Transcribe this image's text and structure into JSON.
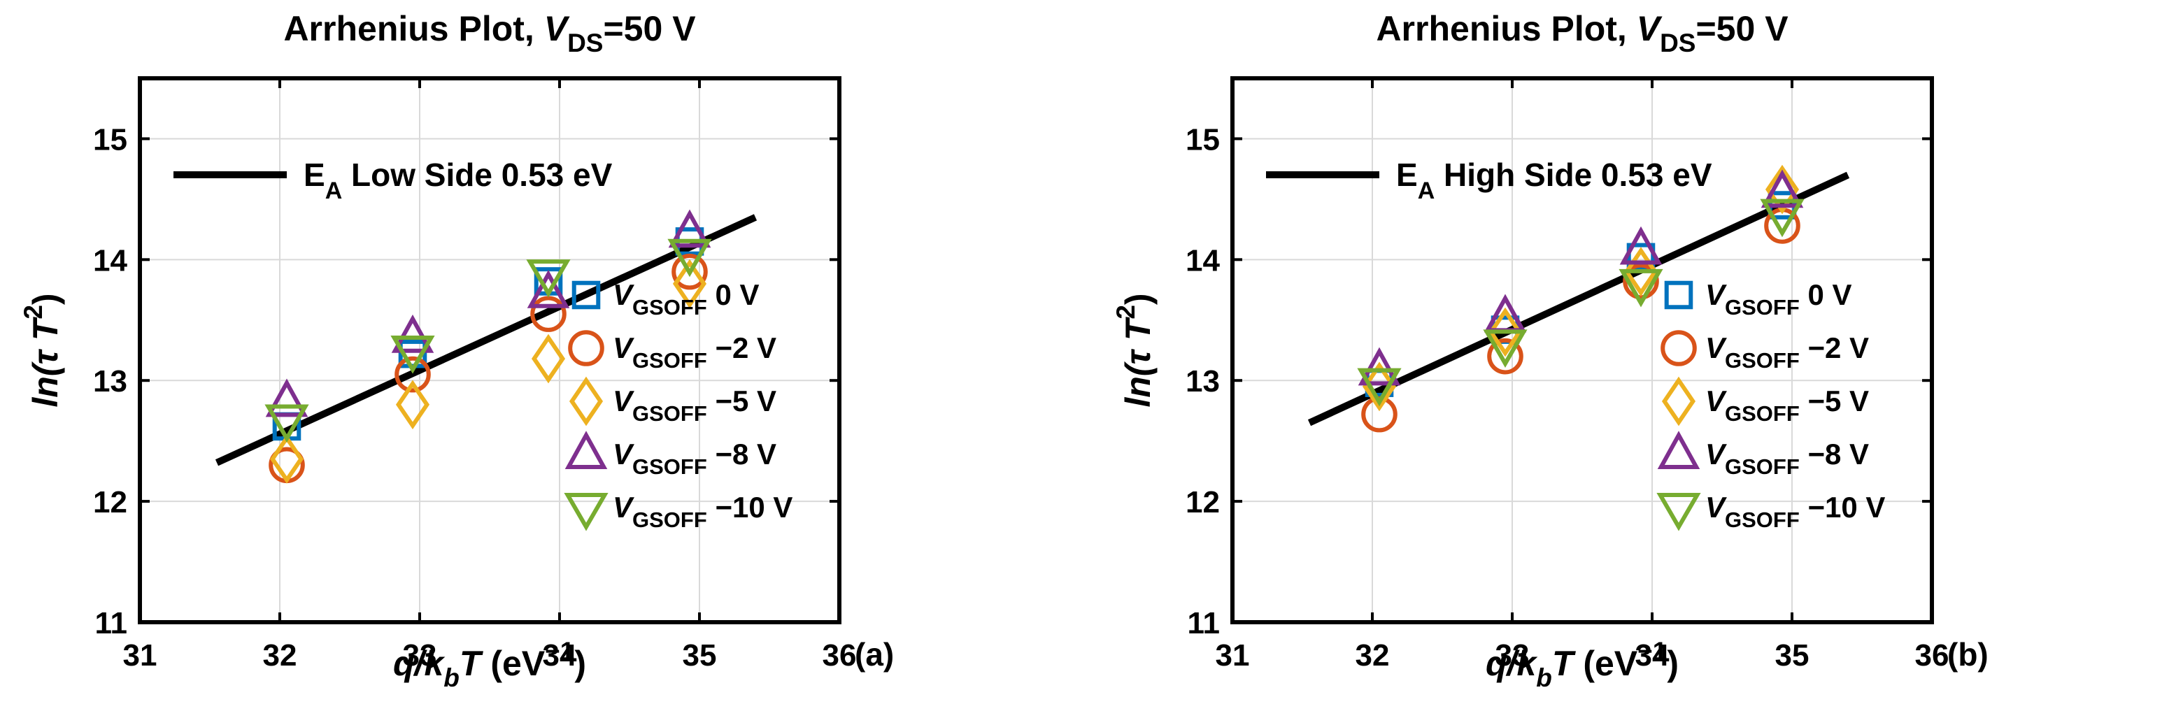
{
  "chart_data": [
    {
      "type": "scatter",
      "panel_label": "(a)",
      "title": {
        "prefix": "Arrhenius Plot, ",
        "var": "V",
        "sub": "DS",
        "suffix": "=50 V"
      },
      "xlabel": {
        "q": "q/k",
        "sub": "b",
        "T": "T",
        "unit": " (eV",
        "sup": "−1",
        "close": ")"
      },
      "ylabel": {
        "ln": "ln(",
        "tau": "τ",
        "T": " T",
        "sup": "2",
        "close": ")"
      },
      "xlim": [
        31,
        36
      ],
      "ylim": [
        11,
        15.5
      ],
      "xticks": [
        31,
        32,
        33,
        34,
        35,
        36
      ],
      "yticks": [
        11,
        12,
        13,
        14,
        15
      ],
      "grid": true,
      "fit": {
        "label_main": "E",
        "label_sub": "A",
        "label_rest": " Low Side 0.53 eV",
        "x": [
          31.55,
          35.4
        ],
        "y": [
          12.32,
          14.35
        ]
      },
      "series": [
        {
          "name": "0 V",
          "marker": "square",
          "color": "#0072BD",
          "x": [
            32.05,
            32.95,
            33.92,
            34.93
          ],
          "y": [
            12.62,
            13.22,
            13.82,
            14.15
          ]
        },
        {
          "name": "−2 V",
          "marker": "circle",
          "color": "#D95319",
          "x": [
            32.05,
            32.95,
            33.92,
            34.93
          ],
          "y": [
            12.3,
            13.05,
            13.55,
            13.9
          ]
        },
        {
          "name": "−5 V",
          "marker": "diamond",
          "color": "#EDB120",
          "x": [
            32.05,
            32.95,
            33.92,
            34.93
          ],
          "y": [
            12.35,
            12.8,
            13.18,
            13.8
          ]
        },
        {
          "name": "−8 V",
          "marker": "triangle-up",
          "color": "#7E2F8E",
          "x": [
            32.05,
            32.95,
            33.92,
            34.93
          ],
          "y": [
            12.82,
            13.35,
            13.72,
            14.22
          ]
        },
        {
          "name": "−10 V",
          "marker": "triangle-down",
          "color": "#77AC30",
          "x": [
            32.05,
            32.95,
            33.92,
            34.93
          ],
          "y": [
            12.68,
            13.25,
            13.88,
            14.05
          ]
        }
      ],
      "legend": {
        "var": "V",
        "sub": "GSOFF",
        "placement": "right"
      }
    },
    {
      "type": "scatter",
      "panel_label": "(b)",
      "title": {
        "prefix": "Arrhenius Plot, ",
        "var": "V",
        "sub": "DS",
        "suffix": "=50 V"
      },
      "xlabel": {
        "q": "q/k",
        "sub": "b",
        "T": "T",
        "unit": " (eV",
        "sup": "−1",
        "close": ")"
      },
      "ylabel": {
        "ln": "ln(",
        "tau": "τ",
        "T": " T",
        "sup": "2",
        "close": ")"
      },
      "xlim": [
        31,
        36
      ],
      "ylim": [
        11,
        15.5
      ],
      "xticks": [
        31,
        32,
        33,
        34,
        35,
        36
      ],
      "yticks": [
        11,
        12,
        13,
        14,
        15
      ],
      "grid": true,
      "fit": {
        "label_main": "E",
        "label_sub": "A",
        "label_rest": " High Side 0.53 eV",
        "x": [
          31.55,
          35.4
        ],
        "y": [
          12.65,
          14.7
        ]
      },
      "series": [
        {
          "name": "0 V",
          "marker": "square",
          "color": "#0072BD",
          "x": [
            32.05,
            32.95,
            33.92,
            34.93
          ],
          "y": [
            12.98,
            13.42,
            14.02,
            14.45
          ]
        },
        {
          "name": "−2 V",
          "marker": "circle",
          "color": "#D95319",
          "x": [
            32.05,
            32.95,
            33.92,
            34.93
          ],
          "y": [
            12.72,
            13.2,
            13.82,
            14.28
          ]
        },
        {
          "name": "−5 V",
          "marker": "diamond",
          "color": "#EDB120",
          "x": [
            32.05,
            32.95,
            33.92,
            34.93
          ],
          "y": [
            12.95,
            13.4,
            13.9,
            14.58
          ]
        },
        {
          "name": "−8 V",
          "marker": "triangle-up",
          "color": "#7E2F8E",
          "x": [
            32.05,
            32.95,
            33.92,
            34.93
          ],
          "y": [
            13.08,
            13.52,
            14.08,
            14.55
          ]
        },
        {
          "name": "−10 V",
          "marker": "triangle-down",
          "color": "#77AC30",
          "x": [
            32.05,
            32.95,
            33.92,
            34.93
          ],
          "y": [
            12.98,
            13.3,
            13.8,
            14.38
          ]
        }
      ],
      "legend": {
        "var": "V",
        "sub": "GSOFF",
        "placement": "right"
      }
    }
  ]
}
